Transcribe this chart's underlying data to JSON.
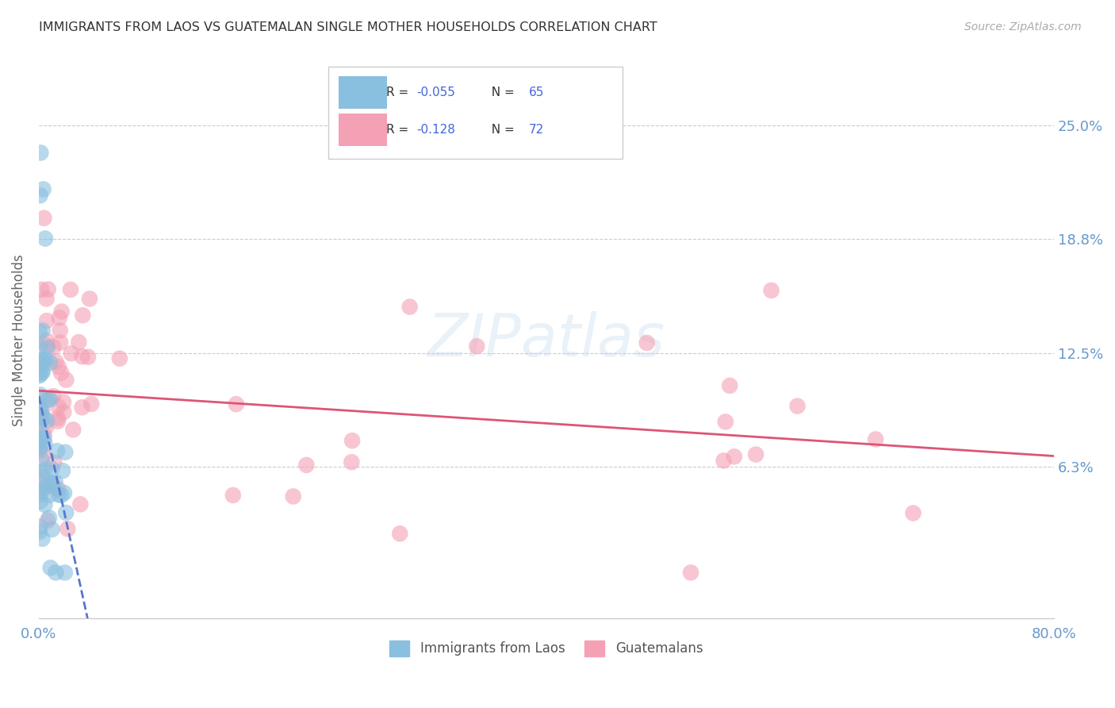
{
  "title": "IMMIGRANTS FROM LAOS VS GUATEMALAN SINGLE MOTHER HOUSEHOLDS CORRELATION CHART",
  "source": "Source: ZipAtlas.com",
  "ylabel": "Single Mother Households",
  "ytick_labels": [
    "25.0%",
    "18.8%",
    "12.5%",
    "6.3%"
  ],
  "ytick_values": [
    0.25,
    0.188,
    0.125,
    0.063
  ],
  "legend_blue_label": "Immigrants from Laos",
  "legend_pink_label": "Guatemalans",
  "legend_r_blue": "-0.055",
  "legend_n_blue": "65",
  "legend_r_pink": "-0.128",
  "legend_n_pink": "72",
  "blue_color": "#89bfdf",
  "pink_color": "#f4a0b5",
  "line_blue_color": "#5577cc",
  "line_pink_color": "#dd5577",
  "background_color": "#ffffff",
  "grid_color": "#cccccc",
  "title_color": "#333333",
  "axis_color": "#6699cc",
  "source_color": "#aaaaaa",
  "xlim": [
    0.0,
    0.8
  ],
  "ylim": [
    -0.02,
    0.285
  ]
}
